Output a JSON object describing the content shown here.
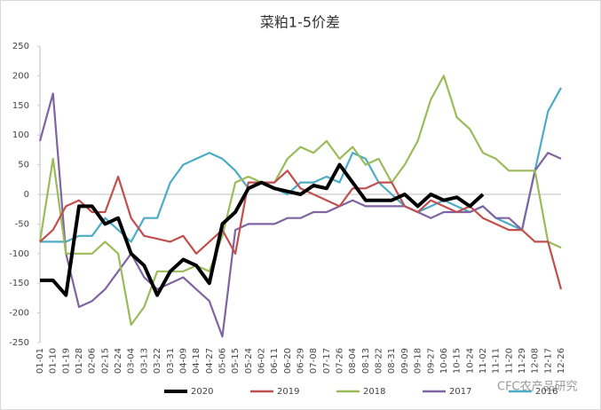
{
  "chart_data": {
    "type": "line",
    "title": "菜粕1-5价差",
    "categories": [
      "01-01",
      "01-10",
      "01-19",
      "01-28",
      "02-06",
      "02-15",
      "02-24",
      "03-04",
      "03-13",
      "03-22",
      "03-31",
      "04-09",
      "04-18",
      "04-27",
      "05-06",
      "05-15",
      "05-24",
      "06-02",
      "06-11",
      "06-20",
      "06-29",
      "07-08",
      "07-17",
      "07-26",
      "08-04",
      "08-13",
      "08-22",
      "08-31",
      "09-09",
      "09-18",
      "09-27",
      "10-06",
      "10-15",
      "10-24",
      "11-02",
      "11-11",
      "11-20",
      "11-29",
      "12-08",
      "12-17",
      "12-26"
    ],
    "series": [
      {
        "name": "2020",
        "color": "#000000",
        "values": [
          -145,
          -145,
          -170,
          -20,
          -20,
          -50,
          -40,
          -100,
          -120,
          -170,
          -130,
          -110,
          -120,
          -150,
          -50,
          -30,
          10,
          20,
          10,
          5,
          0,
          15,
          10,
          50,
          20,
          -10,
          -10,
          -10,
          0,
          -20,
          0,
          -10,
          -5,
          -20,
          0,
          null,
          null,
          null,
          null,
          null,
          null
        ]
      },
      {
        "name": "2019",
        "color": "#c0504d",
        "values": [
          -80,
          -60,
          -20,
          -10,
          -30,
          -30,
          30,
          -40,
          -70,
          -75,
          -80,
          -70,
          -100,
          -80,
          -60,
          -100,
          20,
          20,
          20,
          40,
          10,
          0,
          -10,
          -20,
          10,
          10,
          20,
          20,
          -20,
          -30,
          -10,
          -20,
          -30,
          -20,
          -40,
          -50,
          -60,
          -60,
          -80,
          -80,
          -160
        ]
      },
      {
        "name": "2018",
        "color": "#9bbb59",
        "values": [
          -80,
          60,
          -100,
          -100,
          -100,
          -80,
          -100,
          -220,
          -190,
          -130,
          -130,
          -130,
          -120,
          -130,
          -70,
          20,
          30,
          20,
          20,
          60,
          80,
          70,
          90,
          60,
          80,
          50,
          60,
          20,
          50,
          90,
          160,
          200,
          130,
          110,
          70,
          60,
          40,
          40,
          40,
          -80,
          -90
        ]
      },
      {
        "name": "2017",
        "color": "#8064a2",
        "values": [
          90,
          170,
          -100,
          -190,
          -180,
          -160,
          -130,
          -100,
          -140,
          -160,
          -150,
          -140,
          -160,
          -180,
          -240,
          -60,
          -50,
          -50,
          -50,
          -40,
          -40,
          -30,
          -30,
          -20,
          -10,
          -20,
          -20,
          -20,
          -20,
          -30,
          -40,
          -30,
          -30,
          -30,
          -20,
          -40,
          -40,
          -60,
          40,
          70,
          60
        ]
      },
      {
        "name": "2016",
        "color": "#4bacc6",
        "values": [
          -80,
          -80,
          -80,
          -70,
          -70,
          -40,
          -60,
          -80,
          -40,
          -40,
          20,
          50,
          60,
          70,
          60,
          40,
          10,
          20,
          10,
          0,
          20,
          20,
          30,
          20,
          70,
          60,
          20,
          0,
          -20,
          -30,
          -20,
          -10,
          -20,
          -30,
          -20,
          -40,
          -50,
          -60,
          40,
          140,
          180
        ]
      }
    ],
    "ylim": [
      -250,
      250
    ],
    "yticks": [
      -250,
      -200,
      -150,
      -100,
      -50,
      0,
      50,
      100,
      150,
      200,
      250
    ],
    "grid": false,
    "legend": "bottom",
    "watermark": "CFC农产品研究"
  }
}
